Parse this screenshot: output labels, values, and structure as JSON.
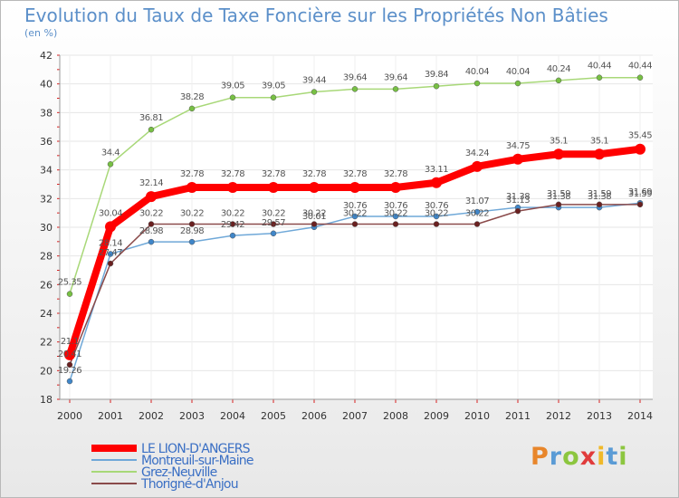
{
  "title": "Evolution du Taux de Taxe Foncière sur les Propriétés Non Bâties",
  "unit_label": "(en %)",
  "logo_text": "Proxiti",
  "chart_data": {
    "type": "line",
    "title": "Evolution du Taux de Taxe Foncière sur les Propriétés Non Bâties",
    "ylabel": "(en %)",
    "xlabel": "",
    "ylim": [
      18,
      42
    ],
    "yticks": [
      18,
      20,
      22,
      24,
      26,
      28,
      30,
      32,
      34,
      36,
      38,
      40,
      42
    ],
    "categories": [
      "2000",
      "2001",
      "2002",
      "2003",
      "2004",
      "2005",
      "2006",
      "2007",
      "2008",
      "2009",
      "2010",
      "2011",
      "2012",
      "2013",
      "2014"
    ],
    "legend_position": "bottom-left",
    "series": [
      {
        "name": "LE LION-D'ANGERS",
        "color": "#ff0000",
        "point_color": "#ff0000",
        "show_labels": true,
        "values": [
          21.1,
          30.04,
          32.14,
          32.78,
          32.78,
          32.78,
          32.78,
          32.78,
          32.78,
          33.11,
          34.24,
          34.75,
          35.1,
          35.1,
          35.45
        ],
        "labels": [
          "21.1",
          "30.04",
          "32.14",
          "32.78",
          "32.78",
          "32.78",
          "32.78",
          "32.78",
          "32.78",
          "33.11",
          "34.24",
          "34.75",
          "35.1",
          "35.1",
          "35.45"
        ]
      },
      {
        "name": "Montreuil-sur-Maine",
        "color": "#6fa8d8",
        "point_color": "#3f86c9",
        "show_labels": true,
        "values": [
          19.26,
          28.14,
          28.98,
          28.98,
          29.42,
          29.57,
          30.01,
          30.76,
          30.76,
          30.76,
          31.07,
          31.38,
          31.38,
          31.38,
          31.69
        ],
        "labels": [
          "19.26",
          "28.14",
          "28.98",
          "28.98",
          "29.42",
          "29.57",
          "30.01",
          "30.76",
          "30.76",
          "30.76",
          "31.07",
          "31.38",
          "31.38",
          "31.38",
          "31.69"
        ]
      },
      {
        "name": "Grez-Neuville",
        "color": "#a8d878",
        "point_color": "#77c043",
        "show_labels": true,
        "values": [
          25.35,
          34.4,
          36.81,
          38.28,
          39.05,
          39.05,
          39.44,
          39.64,
          39.64,
          39.84,
          40.04,
          40.04,
          40.24,
          40.44,
          40.44
        ],
        "labels": [
          "25.35",
          "34.4",
          "36.81",
          "38.28",
          "39.05",
          "39.05",
          "39.44",
          "39.64",
          "39.64",
          "39.84",
          "40.04",
          "40.04",
          "40.24",
          "40.44",
          "40.44"
        ]
      },
      {
        "name": "Thorigné-d'Anjou",
        "color": "#8a4a4a",
        "point_color": "#6a2020",
        "show_labels": true,
        "values": [
          20.41,
          27.47,
          30.22,
          30.22,
          30.22,
          30.22,
          30.22,
          30.22,
          30.22,
          30.22,
          30.22,
          31.13,
          31.59,
          31.59,
          31.59
        ],
        "labels": [
          "20.41",
          "27.47",
          "30.22",
          "30.22",
          "30.22",
          "30.22",
          "30.22",
          "30.22",
          "30.22",
          "30.22",
          "30.22",
          "31.13",
          "31.59",
          "31.59",
          "31.59"
        ]
      }
    ]
  }
}
